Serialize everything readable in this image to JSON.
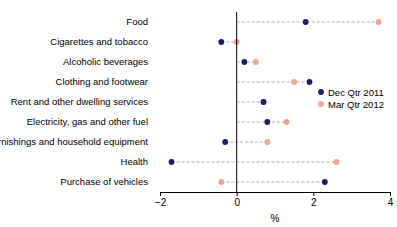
{
  "chart_data": {
    "type": "dot",
    "orientation": "horizontal",
    "categories": [
      "Food",
      "Cigarettes and tobacco",
      "Alcoholic beverages",
      "Clothing and footwear",
      "Rent and other dwelling services",
      "Electricity, gas and other fuel",
      "Furnishings and household equipment",
      "Health",
      "Purchase of vehicles"
    ],
    "series": [
      {
        "name": "Dec Qtr 2011",
        "color": "#1b1b6b",
        "marker": "circle",
        "values": [
          1.8,
          -0.4,
          0.2,
          1.9,
          0.7,
          0.8,
          -0.3,
          -1.7,
          2.3
        ]
      },
      {
        "name": "Mar Qtr 2012",
        "color": "#f4a48a",
        "marker": "circle",
        "values": [
          3.7,
          0.0,
          0.5,
          1.5,
          0.7,
          1.3,
          0.8,
          2.6,
          -0.4
        ]
      }
    ],
    "x_label": "%",
    "xlim": [
      -2,
      4
    ],
    "xticks": [
      {
        "value": -2,
        "label": "−2"
      },
      0,
      2,
      4
    ],
    "grid": false,
    "legend": "right"
  }
}
